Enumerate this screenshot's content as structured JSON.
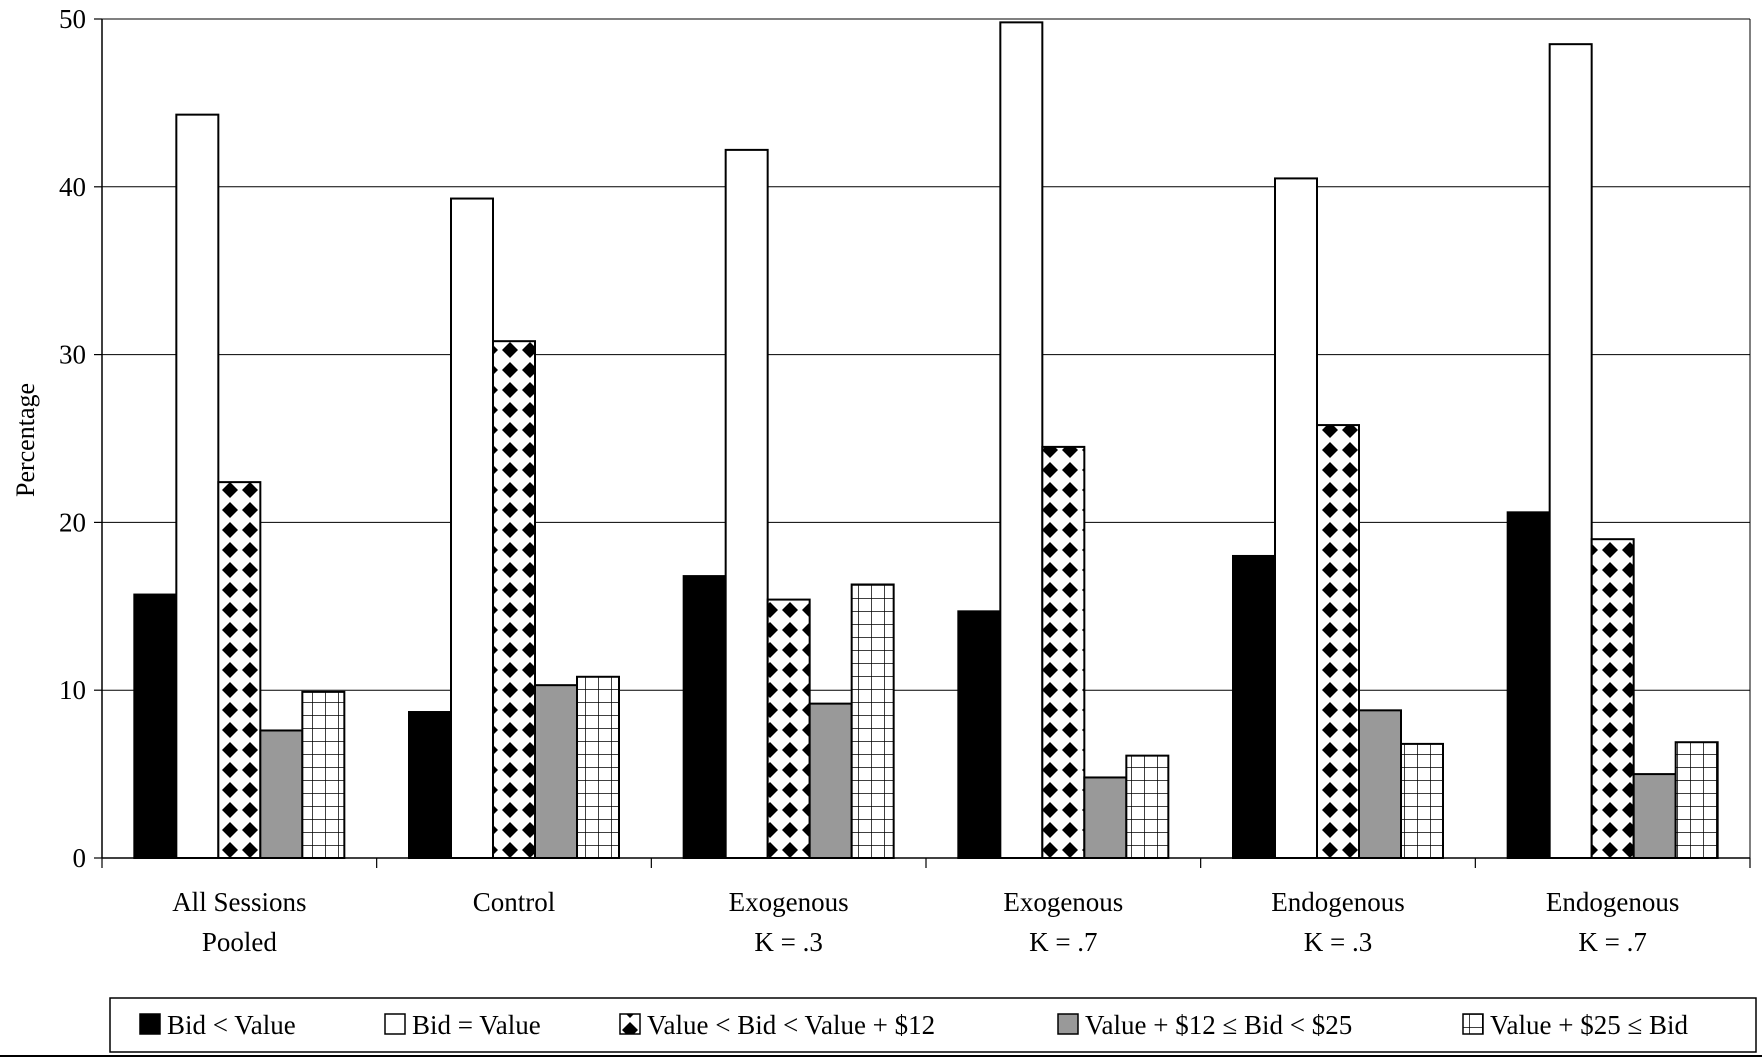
{
  "chart_data": {
    "type": "bar",
    "title": "",
    "xlabel": "",
    "ylabel": "Percentage",
    "ylim": [
      0,
      50
    ],
    "yticks": [
      0,
      10,
      20,
      30,
      40,
      50
    ],
    "grid": true,
    "legend_position": "bottom",
    "categories": [
      [
        "All Sessions",
        "Pooled"
      ],
      [
        "Control"
      ],
      [
        "Exogenous",
        "K = .3"
      ],
      [
        "Exogenous",
        "K = .7"
      ],
      [
        "Endogenous",
        "K = .3"
      ],
      [
        "Endogenous",
        "K = .7"
      ]
    ],
    "series": [
      {
        "name": "Bid < Value",
        "pattern": "solid-black",
        "color": "#000000",
        "values": [
          15.7,
          8.7,
          16.8,
          14.7,
          18.0,
          20.6
        ]
      },
      {
        "name": "Bid = Value",
        "pattern": "white",
        "color": "#ffffff",
        "values": [
          44.3,
          39.3,
          42.2,
          49.8,
          40.5,
          48.5
        ]
      },
      {
        "name": "Value < Bid < Value + $12",
        "pattern": "black-diamonds",
        "color": "#000000",
        "values": [
          22.4,
          30.8,
          15.4,
          24.5,
          25.8,
          19.0
        ]
      },
      {
        "name": "Value + $12 ≤ Bid < $25",
        "pattern": "solid-gray",
        "color": "#999999",
        "values": [
          7.6,
          10.3,
          9.2,
          4.8,
          8.8,
          5.0
        ]
      },
      {
        "name": "Value + $25 ≤ Bid",
        "pattern": "grid",
        "color": "#ffffff",
        "values": [
          9.9,
          10.8,
          16.3,
          6.1,
          6.8,
          6.9
        ]
      }
    ]
  }
}
